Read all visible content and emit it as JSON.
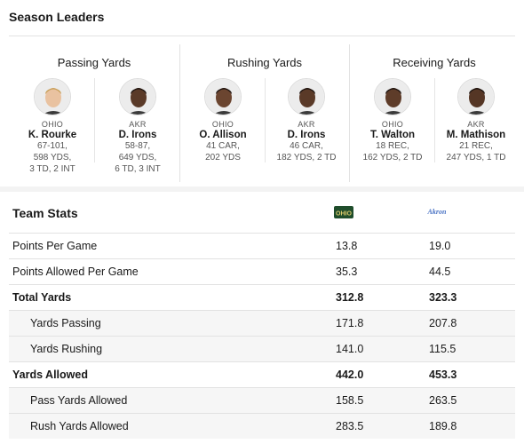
{
  "leaders": {
    "title": "Season Leaders",
    "categories": [
      {
        "title": "Passing Yards",
        "players": [
          {
            "team": "OHIO",
            "name": "K. Rourke",
            "stats": [
              "67-101,",
              "598 YDS,",
              "3 TD, 2 INT"
            ],
            "avatar_skin": "#e9c2a0",
            "avatar_hair": "#c8a05a"
          },
          {
            "team": "AKR",
            "name": "D. Irons",
            "stats": [
              "58-87,",
              "649 YDS,",
              "6 TD, 3 INT"
            ],
            "avatar_skin": "#5a3a28",
            "avatar_hair": "#1e1410"
          }
        ]
      },
      {
        "title": "Rushing Yards",
        "players": [
          {
            "team": "OHIO",
            "name": "O. Allison",
            "stats": [
              "41 CAR,",
              "202 YDS"
            ],
            "avatar_skin": "#6b4530",
            "avatar_hair": "#1e1410"
          },
          {
            "team": "AKR",
            "name": "D. Irons",
            "stats": [
              "46 CAR,",
              "182 YDS, 2 TD"
            ],
            "avatar_skin": "#5a3a28",
            "avatar_hair": "#1e1410"
          }
        ]
      },
      {
        "title": "Receiving Yards",
        "players": [
          {
            "team": "OHIO",
            "name": "T. Walton",
            "stats": [
              "18 REC,",
              "162 YDS, 2 TD"
            ],
            "avatar_skin": "#5e3c29",
            "avatar_hair": "#1e1410"
          },
          {
            "team": "AKR",
            "name": "M. Mathison",
            "stats": [
              "21 REC,",
              "247 YDS, 1 TD"
            ],
            "avatar_skin": "#553625",
            "avatar_hair": "#1e1410"
          }
        ]
      }
    ]
  },
  "team_stats": {
    "title": "Team Stats",
    "team1_logo_text": "OHIO",
    "team2_logo_text": "Akron",
    "team1_color": "#1f4d2b",
    "team1_accent": "#d8c86a",
    "team2_color": "#4a73c4",
    "rows": [
      {
        "label": "Points Per Game",
        "v1": "13.8",
        "v2": "19.0",
        "style": "normal"
      },
      {
        "label": "Points Allowed Per Game",
        "v1": "35.3",
        "v2": "44.5",
        "style": "normal"
      },
      {
        "label": "Total Yards",
        "v1": "312.8",
        "v2": "323.3",
        "style": "bold"
      },
      {
        "label": "Yards Passing",
        "v1": "171.8",
        "v2": "207.8",
        "style": "sub"
      },
      {
        "label": "Yards Rushing",
        "v1": "141.0",
        "v2": "115.5",
        "style": "sub"
      },
      {
        "label": "Yards Allowed",
        "v1": "442.0",
        "v2": "453.3",
        "style": "bold"
      },
      {
        "label": "Pass Yards Allowed",
        "v1": "158.5",
        "v2": "263.5",
        "style": "sub"
      },
      {
        "label": "Rush Yards Allowed",
        "v1": "283.5",
        "v2": "189.8",
        "style": "sub"
      }
    ]
  }
}
